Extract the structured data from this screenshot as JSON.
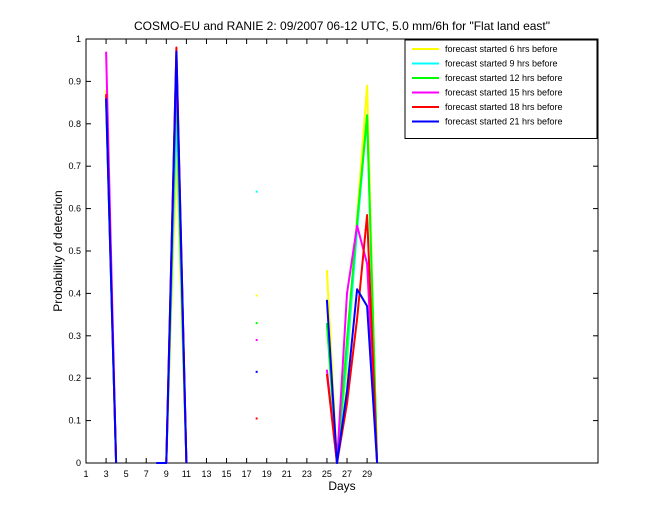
{
  "chart_data": {
    "type": "line",
    "title": "COSMO-EU and RANIE 2: 09/2007 06-12 UTC, 5.0 mm/6h for \"Flat land east\"",
    "xlabel": "Days",
    "ylabel": "Probability of detection",
    "xlim": [
      1,
      52
    ],
    "ylim": [
      0,
      1
    ],
    "xticks": [
      "1",
      "3",
      "5",
      "7",
      "9",
      "11",
      "13",
      "15",
      "17",
      "19",
      "21",
      "23",
      "25",
      "27",
      "29"
    ],
    "yticks": [
      "0",
      "0.1",
      "0.2",
      "0.3",
      "0.4",
      "0.5",
      "0.6",
      "0.7",
      "0.8",
      "0.9",
      "1"
    ],
    "legend_position": "top-right",
    "series": [
      {
        "name": "forecast started 6 hrs before",
        "color": "#ffff00",
        "points": [
          [
            3,
            0.88
          ],
          [
            4,
            0
          ],
          [
            8,
            0
          ],
          [
            9,
            0
          ],
          [
            10,
            0.73
          ],
          [
            11,
            0
          ],
          [
            18,
            0.395
          ],
          [
            25,
            0.455
          ],
          [
            26,
            0
          ],
          [
            27,
            0.22
          ],
          [
            28,
            0.58
          ],
          [
            29,
            0.89
          ],
          [
            30,
            0
          ]
        ]
      },
      {
        "name": "forecast started 9 hrs before",
        "color": "#00ffff",
        "points": [
          [
            3,
            0.85
          ],
          [
            4,
            0
          ],
          [
            8,
            0
          ],
          [
            9,
            0
          ],
          [
            10,
            0.82
          ],
          [
            11,
            0
          ],
          [
            18,
            0.64
          ],
          [
            25,
            0.33
          ],
          [
            26,
            0
          ],
          [
            27,
            0.25
          ],
          [
            28,
            0.55
          ],
          [
            29,
            0.82
          ],
          [
            30,
            0
          ]
        ]
      },
      {
        "name": "forecast started 12 hrs before",
        "color": "#00ff00",
        "points": [
          [
            3,
            0.86
          ],
          [
            4,
            0
          ],
          [
            8,
            0
          ],
          [
            9,
            0
          ],
          [
            10,
            0.9
          ],
          [
            11,
            0
          ],
          [
            18,
            0.33
          ],
          [
            25,
            0.33
          ],
          [
            26,
            0
          ],
          [
            27,
            0.29
          ],
          [
            28,
            0.57
          ],
          [
            29,
            0.82
          ],
          [
            30,
            0
          ]
        ]
      },
      {
        "name": "forecast started 15 hrs before",
        "color": "#ff00ff",
        "points": [
          [
            3,
            0.97
          ],
          [
            4,
            0
          ],
          [
            8,
            0
          ],
          [
            9,
            0
          ],
          [
            10,
            0.94
          ],
          [
            11,
            0
          ],
          [
            18,
            0.29
          ],
          [
            25,
            0.22
          ],
          [
            26,
            0
          ],
          [
            27,
            0.4
          ],
          [
            28,
            0.56
          ],
          [
            29,
            0.47
          ],
          [
            30,
            0
          ]
        ]
      },
      {
        "name": "forecast started 18 hrs before",
        "color": "#ff0000",
        "points": [
          [
            3,
            0.87
          ],
          [
            4,
            0
          ],
          [
            8,
            0
          ],
          [
            9,
            0
          ],
          [
            10,
            0.98
          ],
          [
            11,
            0
          ],
          [
            18,
            0.105
          ],
          [
            25,
            0.21
          ],
          [
            26,
            0
          ],
          [
            27,
            0.14
          ],
          [
            28,
            0.34
          ],
          [
            29,
            0.585
          ],
          [
            30,
            0
          ]
        ]
      },
      {
        "name": "forecast started 21 hrs before",
        "color": "#0000ff",
        "points": [
          [
            3,
            0.86
          ],
          [
            4,
            0
          ],
          [
            8,
            0
          ],
          [
            9,
            0
          ],
          [
            10,
            0.97
          ],
          [
            11,
            0
          ],
          [
            18,
            0.215
          ],
          [
            25,
            0.385
          ],
          [
            26,
            0
          ],
          [
            27,
            0.17
          ],
          [
            28,
            0.41
          ],
          [
            29,
            0.37
          ],
          [
            30,
            0
          ]
        ]
      }
    ]
  }
}
